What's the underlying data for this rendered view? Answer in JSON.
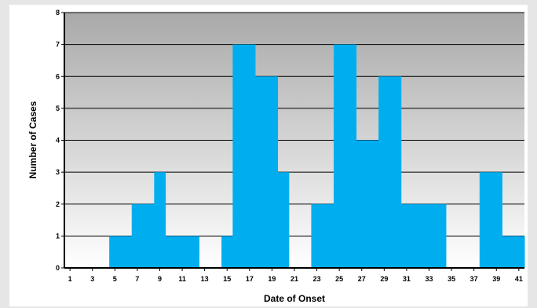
{
  "chart_data": {
    "type": "bar",
    "title": "",
    "xlabel": "Date of Onset",
    "ylabel": "Number of Cases",
    "x": [
      1,
      2,
      3,
      4,
      5,
      6,
      7,
      8,
      9,
      10,
      11,
      12,
      13,
      14,
      15,
      16,
      17,
      18,
      19,
      20,
      21,
      22,
      23,
      24,
      25,
      26,
      27,
      28,
      29,
      30,
      31,
      32,
      33,
      34,
      35,
      36,
      37,
      38,
      39,
      40,
      41
    ],
    "values": [
      0,
      0,
      0,
      0,
      1,
      1,
      2,
      2,
      3,
      1,
      1,
      1,
      0,
      0,
      1,
      7,
      7,
      6,
      6,
      3,
      0,
      0,
      2,
      2,
      7,
      7,
      4,
      4,
      6,
      6,
      2,
      2,
      2,
      2,
      0,
      0,
      0,
      3,
      3,
      1,
      1
    ],
    "x_tick_labels": [
      "1",
      "3",
      "5",
      "7",
      "9",
      "11",
      "13",
      "15",
      "17",
      "19",
      "21",
      "23",
      "25",
      "27",
      "29",
      "31",
      "33",
      "35",
      "37",
      "39",
      "41"
    ],
    "y_tick_labels": [
      "0",
      "1",
      "2",
      "3",
      "4",
      "5",
      "6",
      "7",
      "8"
    ],
    "ylim": [
      0,
      8
    ],
    "grid": true,
    "legend": "none",
    "colors": {
      "bar": "#00aeef",
      "background_top": "#a9a9a9",
      "background_bottom": "#ffffff",
      "grid": "#000000"
    }
  }
}
